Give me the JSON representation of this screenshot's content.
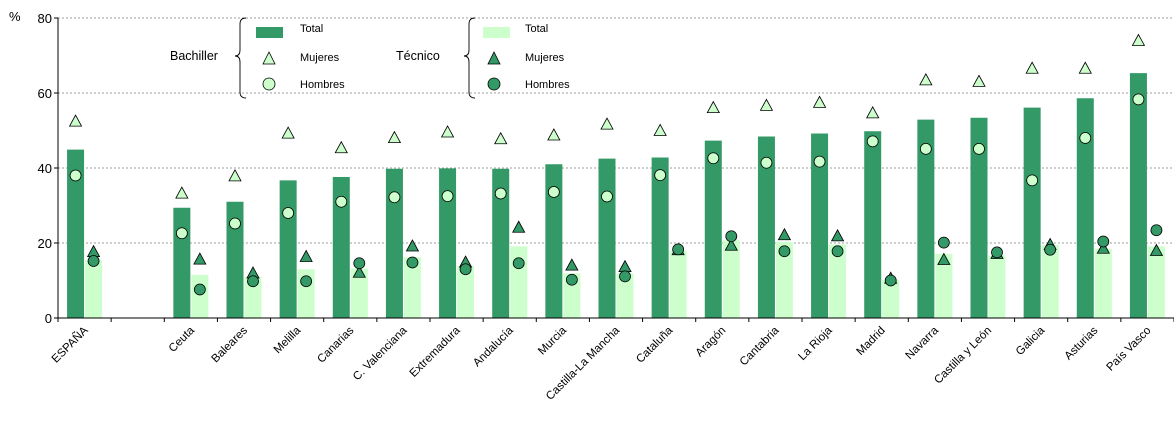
{
  "chart_data": {
    "type": "bar",
    "ylabel": "%",
    "ylim": [
      0,
      80
    ],
    "yticks": [
      0,
      20,
      40,
      60,
      80
    ],
    "grid": true,
    "legend_placement": "top",
    "categories": [
      "ESPAÑA",
      "",
      "Ceuta",
      "Baleares",
      "Melilla",
      "Canarias",
      "C. Valenciana",
      "Extremadura",
      "Andalucía",
      "Murcia",
      "Castilla-La Mancha",
      "Cataluña",
      "Aragón",
      "Cantabria",
      "La Rioja",
      "Madrid",
      "Navarra",
      "Castilla y León",
      "Galicia",
      "Asturias",
      "País Vasco"
    ],
    "legend": {
      "bachiller_label": "Bachiller",
      "tecnico_label": "Técnico",
      "total_label": "Total",
      "mujeres_label": "Mujeres",
      "hombres_label": "Hombres"
    },
    "colors": {
      "bachiller": "#339966",
      "tecnico": "#ccffcc"
    },
    "series": [
      {
        "name": "Bachiller Total",
        "group": "bachiller",
        "kind": "bar",
        "values": [
          44.9,
          null,
          29.4,
          31.0,
          36.7,
          37.6,
          39.8,
          39.9,
          39.8,
          41.0,
          42.5,
          42.8,
          47.3,
          48.4,
          49.2,
          49.8,
          52.9,
          53.4,
          56.1,
          58.6,
          65.3
        ]
      },
      {
        "name": "Bachiller Mujeres",
        "group": "bachiller",
        "kind": "triangle",
        "values": [
          52.5,
          null,
          33.3,
          37.9,
          49.3,
          45.4,
          48.1,
          49.6,
          47.8,
          48.8,
          51.7,
          50.0,
          56.1,
          56.7,
          57.5,
          54.7,
          63.5,
          63.1,
          66.6,
          66.6,
          74.0
        ]
      },
      {
        "name": "Bachiller Hombres",
        "group": "bachiller",
        "kind": "circle",
        "values": [
          38.0,
          null,
          22.6,
          25.2,
          28.0,
          31.0,
          32.2,
          32.5,
          33.2,
          33.6,
          32.4,
          38.1,
          42.6,
          41.4,
          41.7,
          47.1,
          45.1,
          45.1,
          36.7,
          48.0,
          58.3
        ]
      },
      {
        "name": "Técnico Total",
        "group": "tecnico",
        "kind": "bar",
        "values": [
          15.4,
          null,
          11.5,
          10.9,
          13.0,
          13.2,
          16.2,
          13.9,
          19.1,
          11.9,
          11.9,
          17.9,
          20.7,
          20.3,
          19.6,
          10.2,
          17.1,
          16.7,
          19.5,
          18.5,
          19.1
        ]
      },
      {
        "name": "Técnico Mujeres",
        "group": "tecnico",
        "kind": "triangle",
        "values": [
          17.7,
          null,
          15.7,
          12.0,
          16.4,
          12.2,
          19.2,
          14.9,
          24.2,
          14.1,
          13.7,
          18.2,
          19.4,
          22.2,
          21.9,
          10.6,
          15.6,
          17.2,
          19.6,
          18.6,
          18.0
        ]
      },
      {
        "name": "Técnico Hombres",
        "group": "tecnico",
        "kind": "circle",
        "values": [
          15.2,
          null,
          7.6,
          9.8,
          9.8,
          14.6,
          14.8,
          13.0,
          14.6,
          10.2,
          11.1,
          18.3,
          21.8,
          17.8,
          17.8,
          10.0,
          20.1,
          17.5,
          18.2,
          20.4,
          23.4
        ]
      }
    ]
  }
}
